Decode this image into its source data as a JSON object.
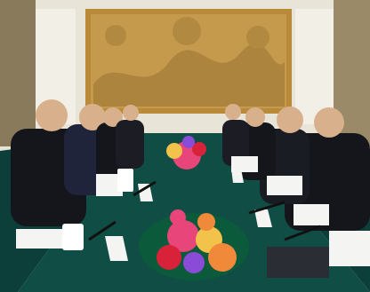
{
  "photo": {
    "subject": "photo",
    "colors": {
      "wall": "#e9e4d8",
      "panel_frame": "#b98a3a",
      "panel_fill": "#c59a4d",
      "curtain": "#8a7a5c",
      "table": "#0f4d45",
      "suit": "#15161c",
      "skin": "#d9b08c",
      "paper": "#f4f4f2",
      "flowers": [
        "#e8457a",
        "#f2c24a",
        "#f08a3a",
        "#d8223a",
        "#8a4bd6"
      ]
    }
  }
}
